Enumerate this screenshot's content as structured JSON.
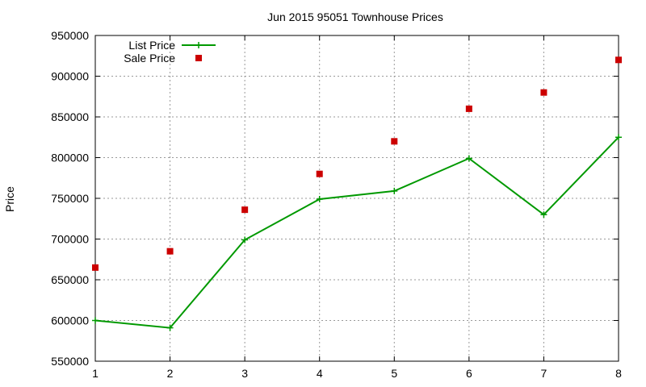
{
  "chart_data": {
    "type": "line",
    "title": "Jun 2015 95051 Townhouse Prices",
    "xlabel": "",
    "ylabel": "Price",
    "x": [
      1,
      2,
      3,
      4,
      5,
      6,
      7,
      8
    ],
    "xlim": [
      1,
      8
    ],
    "ylim": [
      550000,
      950000
    ],
    "xticks": [
      "1",
      "2",
      "3",
      "4",
      "5",
      "6",
      "7",
      "8"
    ],
    "yticks": [
      "550000",
      "600000",
      "650000",
      "700000",
      "750000",
      "800000",
      "850000",
      "900000",
      "950000"
    ],
    "grid": true,
    "legend_position": "top-left",
    "series": [
      {
        "name": "List Price",
        "style": "line-with-cross-markers",
        "color": "#009900",
        "values": [
          600000,
          591000,
          699000,
          749000,
          759000,
          799000,
          730000,
          825000
        ]
      },
      {
        "name": "Sale Price",
        "style": "square-markers",
        "color": "#cc0000",
        "values": [
          665000,
          685000,
          736000,
          780000,
          820000,
          860000,
          880000,
          920000
        ]
      }
    ]
  }
}
